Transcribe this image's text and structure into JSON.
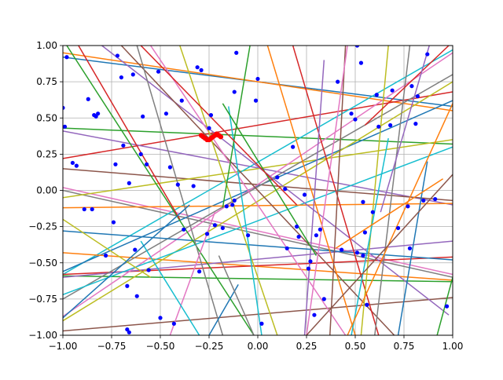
{
  "chart_data": {
    "type": "line",
    "title": "",
    "xlabel": "",
    "ylabel": "",
    "xlim": [
      -1.0,
      1.0
    ],
    "ylim": [
      -1.0,
      1.0
    ],
    "grid": true,
    "x_ticks": [
      -1.0,
      -0.75,
      -0.5,
      -0.25,
      0.0,
      0.25,
      0.5,
      0.75,
      1.0
    ],
    "y_ticks": [
      -1.0,
      -0.75,
      -0.5,
      -0.25,
      0.0,
      0.25,
      0.5,
      0.75,
      1.0
    ],
    "x_tick_labels": [
      "−1.00",
      "−0.75",
      "−0.50",
      "−0.25",
      "0.00",
      "0.25",
      "0.50",
      "0.75",
      "1.00"
    ],
    "y_tick_labels": [
      "−1.00",
      "−0.75",
      "−0.50",
      "−0.25",
      "0.00",
      "0.25",
      "0.50",
      "0.75",
      "1.00"
    ],
    "series_colors": [
      "#1f77b4",
      "#ff7f0e",
      "#2ca02c",
      "#d62728",
      "#9467bd",
      "#8c564b",
      "#e377c2",
      "#7f7f7f",
      "#bcbd22",
      "#17becf"
    ],
    "lines": [
      {
        "x": [
          -1.0,
          1.0
        ],
        "y": [
          0.92,
          0.58
        ]
      },
      {
        "x": [
          -1.0,
          1.0
        ],
        "y": [
          0.95,
          0.55
        ]
      },
      {
        "x": [
          -1.0,
          1.0
        ],
        "y": [
          0.43,
          0.32
        ]
      },
      {
        "x": [
          -1.0,
          1.0
        ],
        "y": [
          0.22,
          0.68
        ]
      },
      {
        "x": [
          -1.0,
          1.0
        ],
        "y": [
          0.41,
          -0.1
        ]
      },
      {
        "x": [
          -1.0,
          1.0
        ],
        "y": [
          0.15,
          -0.07
        ]
      },
      {
        "x": [
          -1.0,
          1.0
        ],
        "y": [
          0.02,
          -0.58
        ]
      },
      {
        "x": [
          -1.0,
          1.0
        ],
        "y": [
          0.0,
          -0.6
        ]
      },
      {
        "x": [
          -1.0,
          1.0
        ],
        "y": [
          -0.05,
          0.35
        ]
      },
      {
        "x": [
          -1.0,
          1.0
        ],
        "y": [
          -0.58,
          0.97
        ]
      },
      {
        "x": [
          -1.0,
          1.0
        ],
        "y": [
          -0.56,
          0.62
        ]
      },
      {
        "x": [
          -1.0,
          1.0
        ],
        "y": [
          -0.43,
          -0.62
        ]
      },
      {
        "x": [
          -1.0,
          1.0
        ],
        "y": [
          -0.59,
          -0.63
        ]
      },
      {
        "x": [
          -1.0,
          1.0
        ],
        "y": [
          -0.58,
          -0.46
        ]
      },
      {
        "x": [
          -1.0,
          1.0
        ],
        "y": [
          -0.6,
          -0.35
        ]
      },
      {
        "x": [
          -1.0,
          1.0
        ],
        "y": [
          -0.97,
          -0.74
        ]
      },
      {
        "x": [
          -1.0,
          1.0
        ],
        "y": [
          -0.87,
          0.95
        ]
      },
      {
        "x": [
          -1.0,
          1.0
        ],
        "y": [
          -0.75,
          0.8
        ]
      },
      {
        "x": [
          -1.0,
          1.0
        ],
        "y": [
          -0.9,
          0.75
        ]
      },
      {
        "x": [
          -1.0,
          1.0
        ],
        "y": [
          -0.72,
          0.3
        ]
      },
      {
        "x": [
          -1.0,
          1.0
        ],
        "y": [
          -0.28,
          -0.48
        ]
      },
      {
        "x": [
          -1.0,
          1.0
        ],
        "y": [
          -0.12,
          -0.09
        ]
      },
      {
        "x": [
          -0.98,
          -0.02
        ],
        "y": [
          1.0,
          -1.0
        ]
      },
      {
        "x": [
          -0.92,
          -0.4
        ],
        "y": [
          1.0,
          -0.2
        ]
      },
      {
        "x": [
          -0.8,
          0.98
        ],
        "y": [
          1.0,
          -0.86
        ]
      },
      {
        "x": [
          -0.7,
          0.7
        ],
        "y": [
          1.0,
          -1.0
        ]
      },
      {
        "x": [
          -0.55,
          0.45
        ],
        "y": [
          1.0,
          -1.0
        ]
      },
      {
        "x": [
          -0.62,
          -0.18
        ],
        "y": [
          1.0,
          -1.0
        ]
      },
      {
        "x": [
          -0.4,
          0.1
        ],
        "y": [
          1.0,
          -1.0
        ]
      },
      {
        "x": [
          -0.15,
          0.02
        ],
        "y": [
          0.58,
          -1.0
        ]
      },
      {
        "x": [
          -0.25,
          -0.1
        ],
        "y": [
          -1.0,
          -0.65
        ]
      },
      {
        "x": [
          0.05,
          0.5
        ],
        "y": [
          1.0,
          -1.0
        ]
      },
      {
        "x": [
          -0.04,
          -0.18
        ],
        "y": [
          1.0,
          -0.12
        ]
      },
      {
        "x": [
          0.18,
          0.62
        ],
        "y": [
          1.0,
          -1.0
        ]
      },
      {
        "x": [
          0.24,
          0.34
        ],
        "y": [
          -1.0,
          0.9
        ]
      },
      {
        "x": [
          0.37,
          0.45
        ],
        "y": [
          -1.0,
          1.0
        ]
      },
      {
        "x": [
          0.25,
          0.46
        ],
        "y": [
          -1.0,
          1.0
        ]
      },
      {
        "x": [
          0.6,
          0.78
        ],
        "y": [
          -1.0,
          1.0
        ]
      },
      {
        "x": [
          0.67,
          0.53
        ],
        "y": [
          1.0,
          -1.0
        ]
      },
      {
        "x": [
          0.48,
          0.67
        ],
        "y": [
          -1.0,
          0.36
        ]
      },
      {
        "x": [
          0.72,
          0.87
        ],
        "y": [
          -1.0,
          0.2
        ]
      },
      {
        "x": [
          0.46,
          1.0
        ],
        "y": [
          -1.0,
          0.6
        ]
      },
      {
        "x": [
          0.92,
          1.0
        ],
        "y": [
          -1.0,
          -0.6
        ]
      },
      {
        "x": [
          0.55,
          0.98
        ],
        "y": [
          0.45,
          1.0
        ]
      },
      {
        "x": [
          0.63,
          0.88
        ],
        "y": [
          -0.15,
          1.0
        ]
      },
      {
        "x": [
          0.25,
          1.0
        ],
        "y": [
          -1.0,
          0.11
        ]
      },
      {
        "x": [
          -0.45,
          -0.22
        ],
        "y": [
          -1.0,
          -0.15
        ]
      },
      {
        "x": [
          -0.2,
          -0.02
        ],
        "y": [
          -0.45,
          -1.0
        ]
      },
      {
        "x": [
          -1.0,
          -0.55
        ],
        "y": [
          -0.2,
          -0.6
        ]
      },
      {
        "x": [
          -0.6,
          -0.3
        ],
        "y": [
          -0.35,
          -1.0
        ]
      },
      {
        "x": [
          -1.0,
          -0.35
        ],
        "y": [
          -0.88,
          -0.1
        ]
      },
      {
        "x": [
          0.4,
          0.95
        ],
        "y": [
          -0.4,
          0.08
        ]
      },
      {
        "x": [
          -0.18,
          0.3
        ],
        "y": [
          0.6,
          -0.45
        ]
      },
      {
        "x": [
          -0.6,
          0.2
        ],
        "y": [
          1.0,
          -0.1
        ]
      }
    ],
    "points": {
      "color": "#0000ff",
      "x": [
        -1.0,
        -0.98,
        -0.95,
        -0.93,
        -0.89,
        -0.87,
        -0.85,
        -0.84,
        -0.83,
        -0.82,
        -0.78,
        -0.74,
        -0.73,
        -0.72,
        -0.7,
        -0.69,
        -0.67,
        -0.66,
        -0.64,
        -0.63,
        -0.62,
        -0.6,
        -0.59,
        -0.57,
        -0.56,
        -0.51,
        -0.5,
        -0.47,
        -0.45,
        -0.43,
        -0.41,
        -0.39,
        -0.38,
        -0.33,
        -0.31,
        -0.3,
        -0.29,
        -0.26,
        -0.25,
        -0.24,
        -0.22,
        -0.18,
        -0.16,
        -0.13,
        -0.12,
        -0.11,
        -0.05,
        -0.01,
        0.0,
        0.02,
        0.1,
        0.14,
        0.15,
        0.18,
        0.2,
        0.21,
        0.24,
        0.26,
        0.27,
        0.29,
        0.3,
        0.32,
        0.34,
        0.41,
        0.43,
        0.48,
        0.5,
        0.51,
        0.53,
        0.54,
        0.55,
        0.56,
        0.59,
        0.61,
        0.62,
        0.68,
        0.69,
        0.72,
        0.77,
        0.78,
        0.79,
        0.81,
        0.85,
        0.87,
        0.91,
        0.97,
        -0.66,
        -0.67,
        0.51,
        0.54,
        -0.12,
        -0.99
      ],
      "y": [
        0.57,
        0.92,
        0.19,
        0.17,
        -0.13,
        0.63,
        -0.13,
        0.52,
        0.51,
        0.53,
        -0.45,
        -0.22,
        0.18,
        0.93,
        0.78,
        0.31,
        -0.96,
        -0.98,
        0.8,
        -0.41,
        -0.73,
        0.25,
        0.51,
        0.18,
        -0.55,
        0.82,
        -0.88,
        0.53,
        0.16,
        -0.92,
        0.04,
        0.62,
        -0.27,
        0.03,
        0.85,
        -0.56,
        0.83,
        -0.3,
        0.43,
        0.52,
        -0.24,
        -0.26,
        -0.11,
        -0.1,
        0.68,
        0.95,
        -0.31,
        0.62,
        0.77,
        -0.92,
        0.09,
        0.01,
        -0.4,
        0.3,
        -0.25,
        -0.32,
        -0.03,
        -0.54,
        -0.49,
        -0.86,
        -0.31,
        -0.27,
        -0.75,
        0.75,
        -0.41,
        0.53,
        0.49,
        -0.43,
        0.88,
        -0.08,
        -0.29,
        -0.79,
        -0.15,
        0.66,
        0.44,
        0.45,
        0.69,
        -0.26,
        -0.11,
        -0.4,
        0.72,
        0.46,
        -0.07,
        0.94,
        -0.06,
        -0.8,
        0.05,
        -0.66,
        1.0,
        -0.45,
        -0.07,
        0.44
      ],
      "extra_x": [
        0.82
      ],
      "extra_y": [
        0.65
      ]
    },
    "highlight": {
      "color": "#ff0000",
      "x": [
        -0.29,
        -0.28,
        -0.27,
        -0.26,
        -0.25,
        -0.24,
        -0.23,
        -0.22,
        -0.21,
        -0.2,
        -0.19
      ],
      "y": [
        0.38,
        0.37,
        0.36,
        0.35,
        0.35,
        0.36,
        0.37,
        0.38,
        0.39,
        0.38,
        0.37
      ]
    }
  }
}
